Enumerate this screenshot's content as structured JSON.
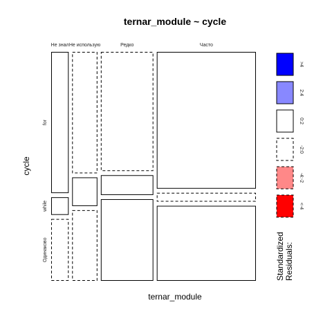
{
  "chart_data": {
    "type": "mosaic",
    "title": "ternar_module ~ cycle",
    "xlabel": "ternar_module",
    "ylabel": "cycle",
    "x_categories": [
      "Не знал",
      "Не использую",
      "Редко",
      "Часто"
    ],
    "y_categories": [
      "for",
      "while",
      "Одинаково"
    ],
    "x_proportions": [
      0.09,
      0.13,
      0.27,
      0.51
    ],
    "conditional_y_proportions": {
      "Не знал": [
        0.64,
        0.08,
        0.28
      ],
      "Не использую": [
        0.55,
        0.13,
        0.32
      ],
      "Редко": [
        0.54,
        0.09,
        0.37
      ],
      "Часто": [
        0.62,
        0.04,
        0.34
      ]
    },
    "residual_class": {
      "Не знал": [
        "0:2",
        "0:2",
        "-2:0"
      ],
      "Не использую": [
        "-2:0",
        "0:2",
        "-2:0"
      ],
      "Редко": [
        "-2:0",
        "0:2",
        "0:2"
      ],
      "Часто": [
        "0:2",
        "-2:0",
        "0:2"
      ]
    },
    "legend": {
      "title": "Standardized\nResiduals:",
      "entries": [
        {
          "label": ">4",
          "color": "#0000FF",
          "dashed": false
        },
        {
          "label": "2:4",
          "color": "#8888FF",
          "dashed": false
        },
        {
          "label": "0:2",
          "color": "#FFFFFF",
          "dashed": false
        },
        {
          "label": "-2:0",
          "color": "#FFFFFF",
          "dashed": true
        },
        {
          "label": "-4:-2",
          "color": "#FF8888",
          "dashed": true
        },
        {
          "label": "<-4",
          "color": "#FF0000",
          "dashed": true
        }
      ]
    }
  }
}
